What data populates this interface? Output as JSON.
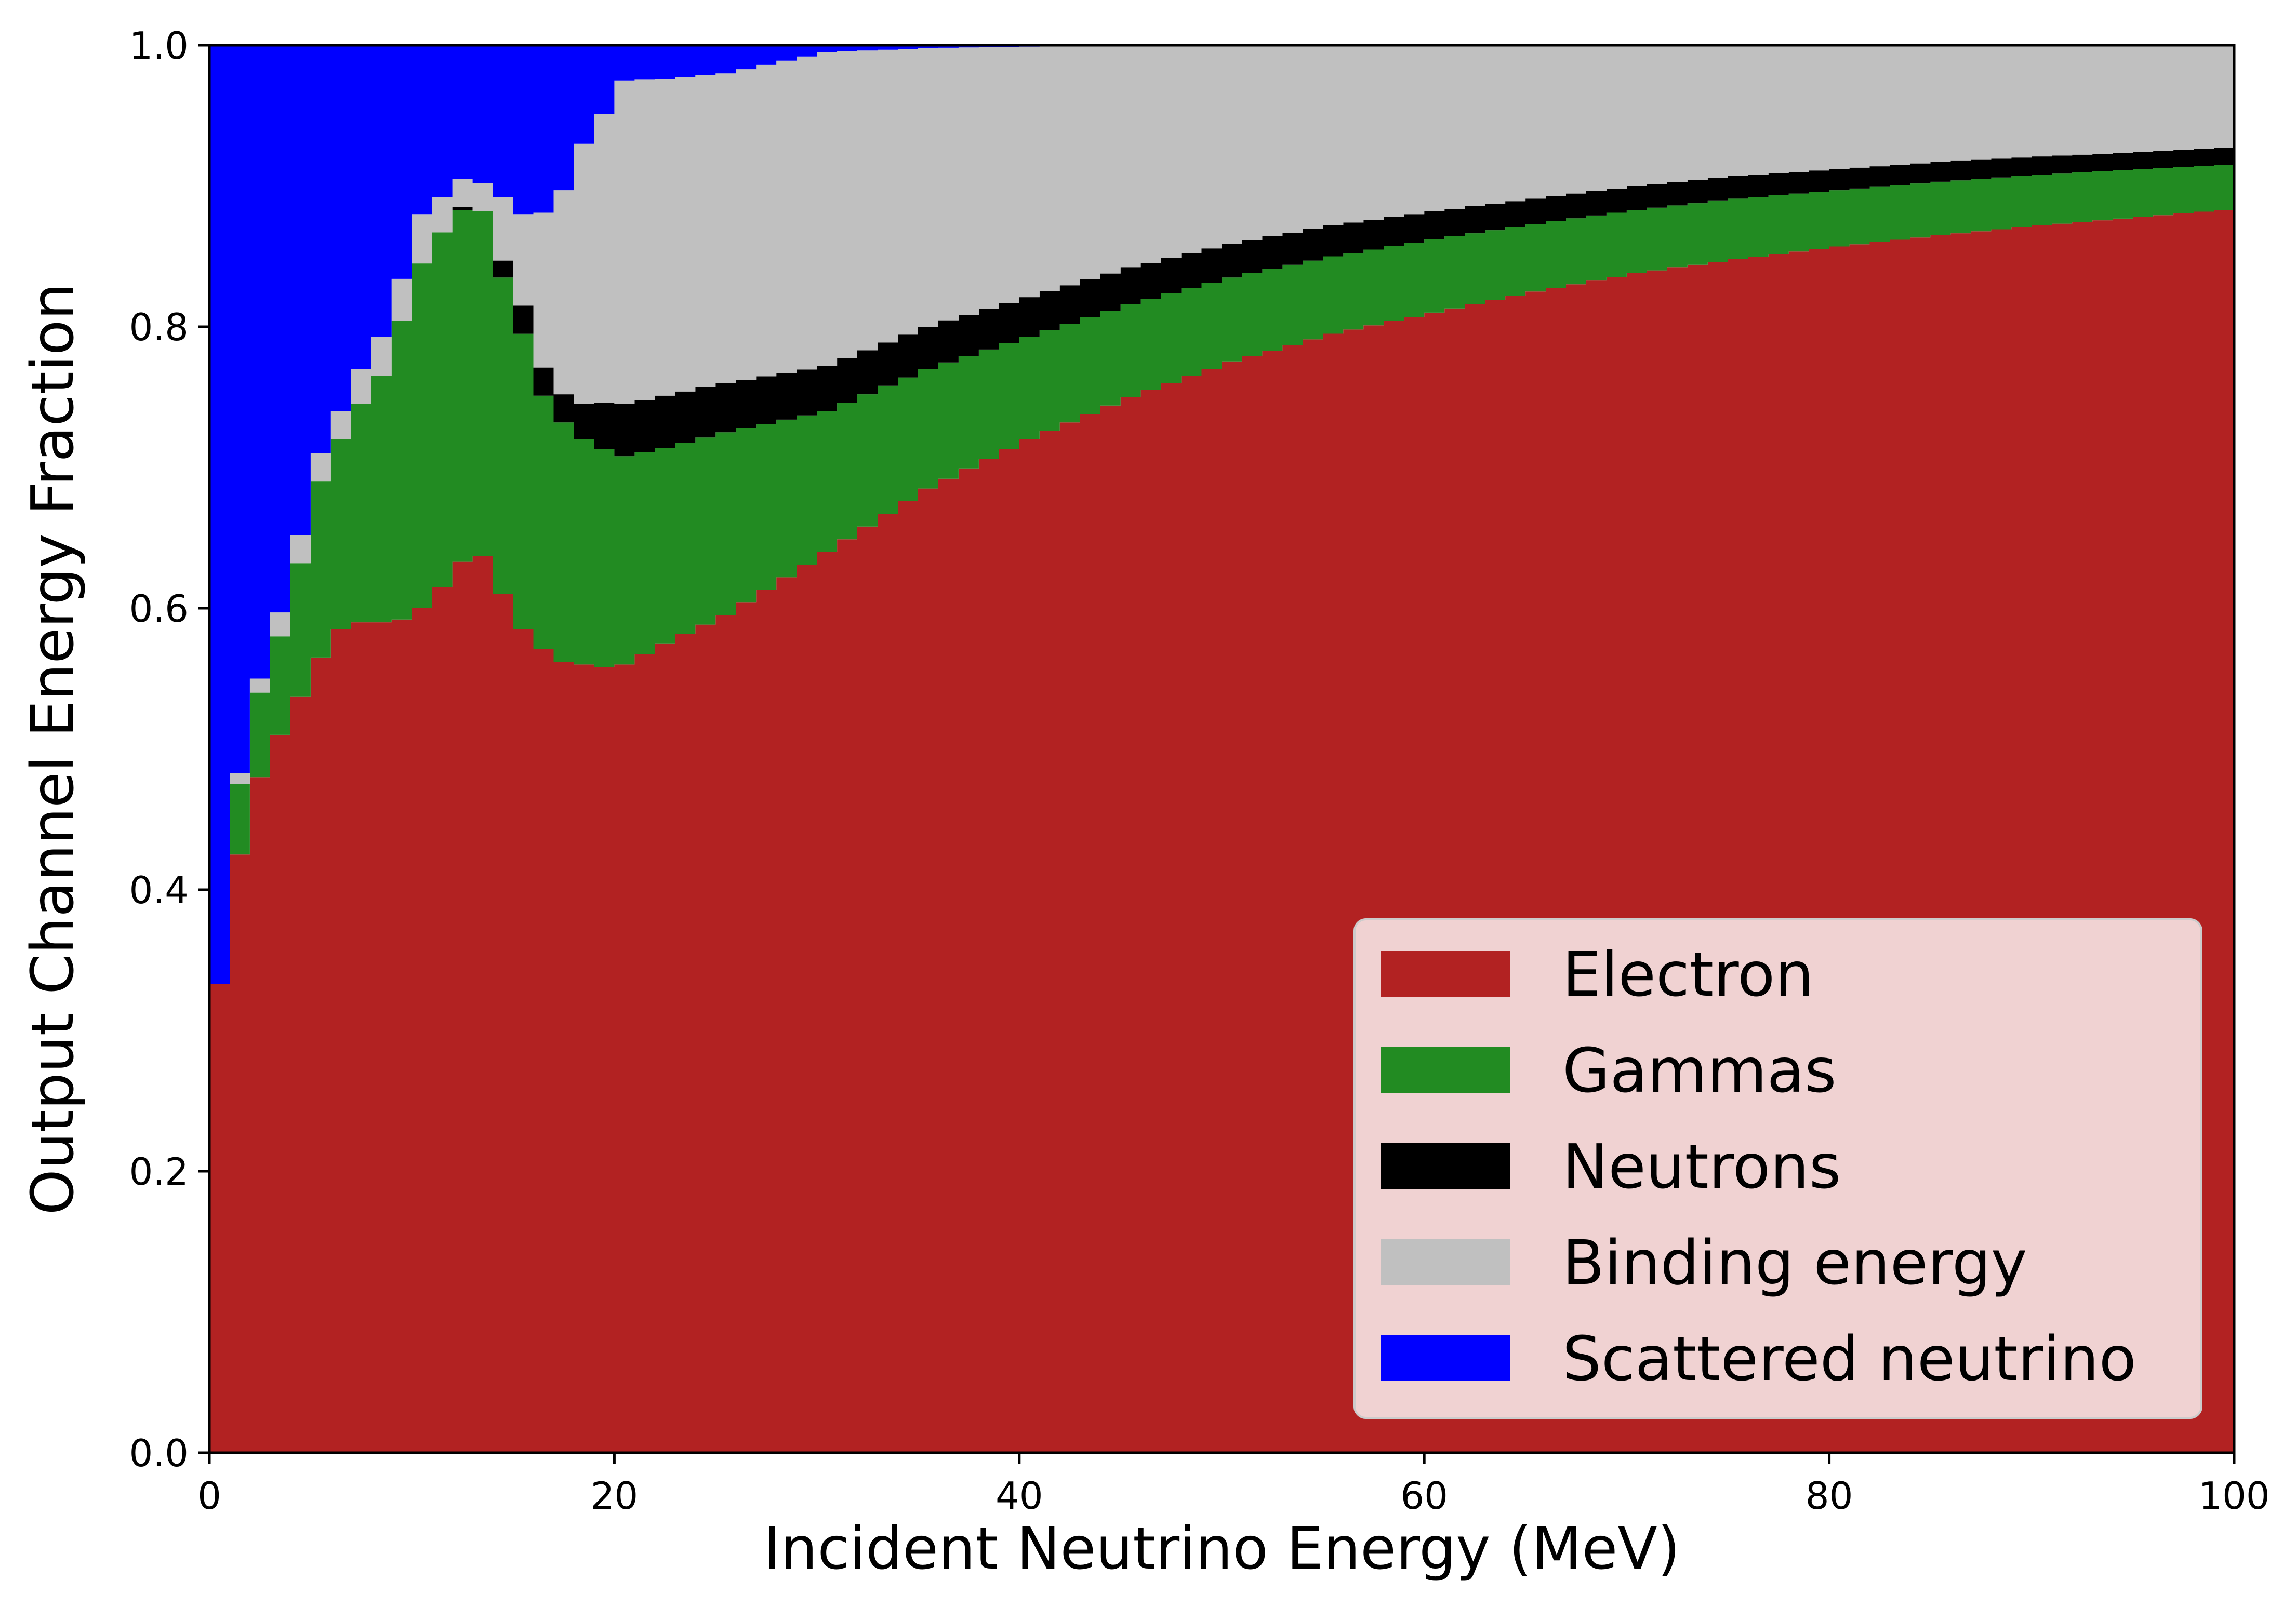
{
  "chart_data": {
    "type": "area",
    "style": "stacked-step-histogram",
    "xlabel": "Incident Neutrino Energy (MeV)",
    "ylabel": "Output Channel Energy Fraction",
    "xlim": [
      0,
      100
    ],
    "ylim": [
      0,
      1
    ],
    "grid": false,
    "legend_position": "lower-right",
    "x_ticks": [
      0,
      20,
      40,
      60,
      80,
      100
    ],
    "x_tick_labels": [
      "0",
      "20",
      "40",
      "60",
      "80",
      "100"
    ],
    "y_ticks": [
      0,
      0.2,
      0.4,
      0.6,
      0.8,
      1.0
    ],
    "y_tick_labels": [
      "0.0",
      "0.2",
      "0.4",
      "0.6",
      "0.8",
      "1.0"
    ],
    "x": [
      0,
      1,
      2,
      3,
      4,
      5,
      6,
      7,
      8,
      9,
      10,
      11,
      12,
      13,
      14,
      15,
      16,
      17,
      18,
      19,
      20,
      22,
      25,
      30,
      35,
      40,
      45,
      50,
      55,
      60,
      65,
      70,
      75,
      80,
      85,
      90,
      95,
      99
    ],
    "bin_width": 1,
    "series": [
      {
        "name": "Electron",
        "color": "#b22222",
        "values": [
          0.333,
          0.425,
          0.48,
          0.51,
          0.537,
          0.565,
          0.585,
          0.59,
          0.59,
          0.592,
          0.6,
          0.615,
          0.633,
          0.637,
          0.61,
          0.585,
          0.571,
          0.562,
          0.56,
          0.558,
          0.56,
          0.575,
          0.595,
          0.64,
          0.685,
          0.72,
          0.75,
          0.775,
          0.795,
          0.81,
          0.825,
          0.838,
          0.848,
          0.857,
          0.865,
          0.872,
          0.878,
          0.883
        ]
      },
      {
        "name": "Gammas",
        "color": "#228b22",
        "values": [
          0.0,
          0.05,
          0.06,
          0.07,
          0.095,
          0.125,
          0.135,
          0.155,
          0.175,
          0.212,
          0.245,
          0.252,
          0.25,
          0.245,
          0.225,
          0.21,
          0.18,
          0.17,
          0.16,
          0.155,
          0.148,
          0.139,
          0.13,
          0.1,
          0.085,
          0.073,
          0.066,
          0.06,
          0.055,
          0.052,
          0.048,
          0.045,
          0.043,
          0.04,
          0.038,
          0.036,
          0.034,
          0.032
        ]
      },
      {
        "name": "Neutrons",
        "color": "#000000",
        "values": [
          0.0,
          0.0,
          0.0,
          0.0,
          0.0,
          0.0,
          0.0,
          0.0,
          0.0,
          0.0,
          0.0,
          0.0,
          0.002,
          0.0,
          0.012,
          0.02,
          0.02,
          0.02,
          0.025,
          0.033,
          0.037,
          0.037,
          0.035,
          0.032,
          0.03,
          0.028,
          0.026,
          0.024,
          0.022,
          0.02,
          0.018,
          0.017,
          0.016,
          0.015,
          0.014,
          0.013,
          0.012,
          0.012
        ]
      },
      {
        "name": "Binding energy",
        "color": "#c0c0c0",
        "values": [
          0.0,
          0.008,
          0.01,
          0.017,
          0.02,
          0.02,
          0.02,
          0.025,
          0.028,
          0.03,
          0.035,
          0.025,
          0.02,
          0.02,
          0.045,
          0.065,
          0.11,
          0.145,
          0.185,
          0.205,
          0.23,
          0.225,
          0.22,
          0.223,
          0.198,
          0.178,
          0.158,
          0.141,
          0.128,
          0.118,
          0.109,
          0.1,
          0.093,
          0.088,
          0.083,
          0.079,
          0.076,
          0.073
        ]
      },
      {
        "name": "Scattered neutrino",
        "color": "#0000ff",
        "values": [
          0.667,
          0.517,
          0.45,
          0.403,
          0.348,
          0.29,
          0.26,
          0.23,
          0.207,
          0.166,
          0.12,
          0.108,
          0.095,
          0.098,
          0.108,
          0.12,
          0.119,
          0.103,
          0.07,
          0.049,
          0.025,
          0.024,
          0.02,
          0.005,
          0.002,
          0.001,
          0.0,
          0.0,
          0.0,
          0.0,
          0.0,
          0.0,
          0.0,
          0.0,
          0.0,
          0.0,
          0.0,
          0.0
        ]
      }
    ]
  }
}
